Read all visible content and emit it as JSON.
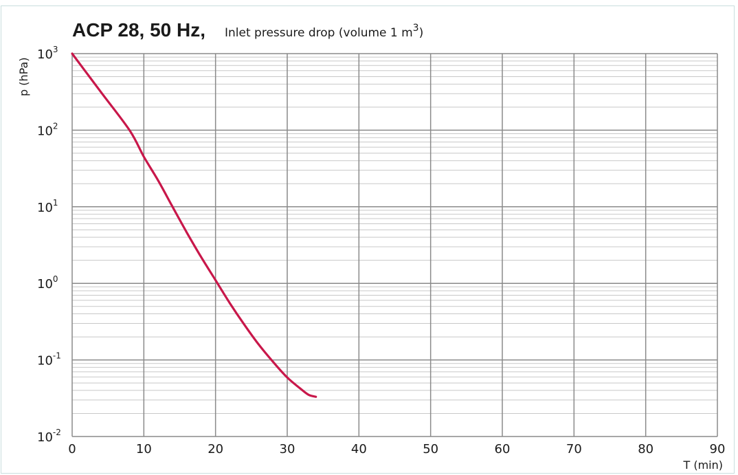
{
  "chart_data": {
    "type": "line",
    "title": "ACP 28, 50 Hz,",
    "subtitle": "Inlet pressure drop (volume 1 m",
    "subtitle_sup": "3",
    "subtitle_end": ")",
    "xlabel": "T (min)",
    "ylabel": "p (hPa)",
    "xlim": [
      0,
      90
    ],
    "x_ticks": [
      0,
      10,
      20,
      30,
      40,
      50,
      60,
      70,
      80,
      90
    ],
    "y_scale": "log",
    "ylim": [
      0.01,
      1000
    ],
    "y_ticks": [
      {
        "value": 1000,
        "base": "10",
        "exp": "3"
      },
      {
        "value": 100,
        "base": "10",
        "exp": "2"
      },
      {
        "value": 10,
        "base": "10",
        "exp": "1"
      },
      {
        "value": 1,
        "base": "10",
        "exp": "0"
      },
      {
        "value": 0.1,
        "base": "10",
        "exp": "-1"
      },
      {
        "value": 0.01,
        "base": "10",
        "exp": "-2"
      }
    ],
    "grid": true,
    "series": [
      {
        "color": "#c8174a",
        "x": [
          0,
          4,
          8,
          10,
          12,
          14,
          16,
          18,
          20,
          22,
          24,
          26,
          28,
          30,
          32,
          33,
          34
        ],
        "y": [
          1000,
          316,
          100,
          45,
          22,
          10,
          4.6,
          2.2,
          1.1,
          0.55,
          0.29,
          0.16,
          0.095,
          0.059,
          0.041,
          0.035,
          0.033
        ]
      }
    ]
  }
}
